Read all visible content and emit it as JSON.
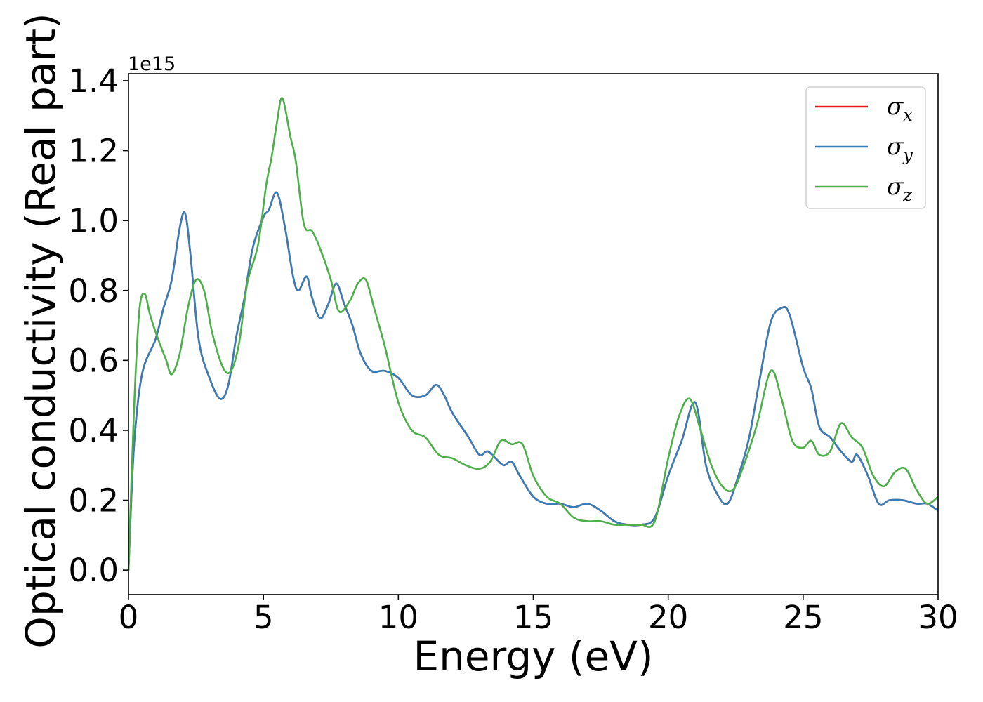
{
  "chart_data": {
    "type": "line",
    "xlabel": "Energy (eV)",
    "ylabel": "Optical conductivity (Real part)",
    "y_offset_label": "1e15",
    "xlim": [
      0,
      30
    ],
    "ylim": [
      -0.07,
      1.42
    ],
    "x_ticks": [
      0,
      5,
      10,
      15,
      20,
      25,
      30
    ],
    "x_tick_labels": [
      "0",
      "5",
      "10",
      "15",
      "20",
      "25",
      "30"
    ],
    "y_ticks": [
      0.0,
      0.2,
      0.4,
      0.6,
      0.8,
      1.0,
      1.2,
      1.4
    ],
    "y_tick_labels": [
      "0.0",
      "0.2",
      "0.4",
      "0.6",
      "0.8",
      "1.0",
      "1.2",
      "1.4"
    ],
    "grid": false,
    "legend_position": "top-right",
    "legend": [
      {
        "name": "σx",
        "base": "σ",
        "sub": "x",
        "color": "#e41a1c"
      },
      {
        "name": "σy",
        "base": "σ",
        "sub": "y",
        "color": "#377eb8"
      },
      {
        "name": "σz",
        "base": "σ",
        "sub": "z",
        "color": "#4daf4a"
      }
    ],
    "series": [
      {
        "name": "σx",
        "color": "#e41a1c",
        "x": [
          0,
          0.2,
          0.5,
          1.0,
          1.3,
          1.6,
          1.9,
          2.1,
          2.3,
          2.6,
          3.0,
          3.4,
          3.7,
          4.0,
          4.3,
          4.6,
          5.0,
          5.2,
          5.5,
          5.8,
          6.1,
          6.3,
          6.6,
          6.8,
          7.1,
          7.4,
          7.7,
          8.0,
          8.3,
          8.6,
          9.0,
          9.5,
          10.0,
          10.5,
          11.0,
          11.4,
          11.7,
          12.0,
          12.6,
          13.0,
          13.3,
          13.6,
          13.9,
          14.2,
          14.5,
          15.0,
          15.5,
          16.0,
          16.5,
          17.0,
          17.5,
          18.0,
          18.5,
          19.0,
          19.5,
          20.0,
          20.5,
          21.0,
          21.4,
          21.8,
          22.2,
          22.6,
          23.0,
          23.4,
          23.8,
          24.2,
          24.5,
          25.0,
          25.3,
          25.6,
          26.0,
          26.4,
          26.8,
          27.0,
          27.4,
          27.8,
          28.2,
          28.7,
          29.2,
          29.6,
          30.0
        ],
        "y": [
          0.0,
          0.35,
          0.56,
          0.66,
          0.75,
          0.83,
          0.98,
          1.02,
          0.9,
          0.66,
          0.55,
          0.49,
          0.53,
          0.67,
          0.78,
          0.92,
          1.01,
          1.03,
          1.08,
          0.98,
          0.84,
          0.8,
          0.84,
          0.78,
          0.72,
          0.76,
          0.82,
          0.76,
          0.7,
          0.62,
          0.57,
          0.57,
          0.55,
          0.5,
          0.5,
          0.53,
          0.5,
          0.45,
          0.38,
          0.33,
          0.34,
          0.32,
          0.3,
          0.31,
          0.27,
          0.21,
          0.19,
          0.19,
          0.18,
          0.19,
          0.17,
          0.14,
          0.13,
          0.13,
          0.15,
          0.27,
          0.37,
          0.48,
          0.3,
          0.22,
          0.19,
          0.27,
          0.38,
          0.55,
          0.71,
          0.75,
          0.73,
          0.58,
          0.52,
          0.41,
          0.38,
          0.34,
          0.31,
          0.33,
          0.27,
          0.19,
          0.2,
          0.2,
          0.19,
          0.19,
          0.17
        ]
      },
      {
        "name": "σy",
        "color": "#377eb8",
        "x": [
          0,
          0.2,
          0.5,
          1.0,
          1.3,
          1.6,
          1.9,
          2.1,
          2.3,
          2.6,
          3.0,
          3.4,
          3.7,
          4.0,
          4.3,
          4.6,
          5.0,
          5.2,
          5.5,
          5.8,
          6.1,
          6.3,
          6.6,
          6.8,
          7.1,
          7.4,
          7.7,
          8.0,
          8.3,
          8.6,
          9.0,
          9.5,
          10.0,
          10.5,
          11.0,
          11.4,
          11.7,
          12.0,
          12.6,
          13.0,
          13.3,
          13.6,
          13.9,
          14.2,
          14.5,
          15.0,
          15.5,
          16.0,
          16.5,
          17.0,
          17.5,
          18.0,
          18.5,
          19.0,
          19.5,
          20.0,
          20.5,
          21.0,
          21.4,
          21.8,
          22.2,
          22.6,
          23.0,
          23.4,
          23.8,
          24.2,
          24.5,
          25.0,
          25.3,
          25.6,
          26.0,
          26.4,
          26.8,
          27.0,
          27.4,
          27.8,
          28.2,
          28.7,
          29.2,
          29.6,
          30.0
        ],
        "y": [
          0.0,
          0.35,
          0.56,
          0.66,
          0.75,
          0.83,
          0.98,
          1.02,
          0.9,
          0.66,
          0.55,
          0.49,
          0.53,
          0.67,
          0.78,
          0.92,
          1.01,
          1.03,
          1.08,
          0.98,
          0.84,
          0.8,
          0.84,
          0.78,
          0.72,
          0.76,
          0.82,
          0.76,
          0.7,
          0.62,
          0.57,
          0.57,
          0.55,
          0.5,
          0.5,
          0.53,
          0.5,
          0.45,
          0.38,
          0.33,
          0.34,
          0.32,
          0.3,
          0.31,
          0.27,
          0.21,
          0.19,
          0.19,
          0.18,
          0.19,
          0.17,
          0.14,
          0.13,
          0.13,
          0.15,
          0.27,
          0.37,
          0.48,
          0.3,
          0.22,
          0.19,
          0.27,
          0.38,
          0.55,
          0.71,
          0.75,
          0.73,
          0.58,
          0.52,
          0.41,
          0.38,
          0.34,
          0.31,
          0.33,
          0.27,
          0.19,
          0.2,
          0.2,
          0.19,
          0.19,
          0.17
        ]
      },
      {
        "name": "σz",
        "color": "#4daf4a",
        "x": [
          0,
          0.2,
          0.4,
          0.6,
          0.8,
          1.1,
          1.4,
          1.6,
          1.9,
          2.2,
          2.5,
          2.8,
          3.1,
          3.5,
          3.8,
          4.1,
          4.4,
          4.8,
          5.1,
          5.3,
          5.5,
          5.7,
          6.0,
          6.2,
          6.5,
          6.8,
          7.1,
          7.5,
          7.8,
          8.2,
          8.5,
          8.8,
          9.1,
          9.5,
          10.0,
          10.5,
          11.0,
          11.5,
          12.0,
          12.5,
          13.0,
          13.4,
          13.8,
          14.2,
          14.6,
          15.0,
          15.5,
          16.0,
          16.5,
          17.0,
          17.5,
          18.0,
          18.5,
          19.0,
          19.5,
          20.0,
          20.4,
          20.8,
          21.2,
          21.6,
          22.0,
          22.4,
          22.8,
          23.3,
          23.8,
          24.2,
          24.6,
          25.0,
          25.3,
          25.6,
          26.0,
          26.4,
          26.8,
          27.2,
          27.6,
          28.0,
          28.4,
          28.8,
          29.2,
          29.6,
          30.0
        ],
        "y": [
          0.0,
          0.45,
          0.74,
          0.79,
          0.73,
          0.66,
          0.6,
          0.56,
          0.62,
          0.75,
          0.83,
          0.8,
          0.68,
          0.58,
          0.57,
          0.65,
          0.82,
          0.93,
          1.1,
          1.18,
          1.28,
          1.35,
          1.24,
          1.17,
          0.99,
          0.97,
          0.92,
          0.83,
          0.74,
          0.77,
          0.82,
          0.83,
          0.75,
          0.64,
          0.48,
          0.4,
          0.38,
          0.33,
          0.32,
          0.3,
          0.29,
          0.31,
          0.37,
          0.36,
          0.36,
          0.27,
          0.21,
          0.19,
          0.15,
          0.14,
          0.14,
          0.13,
          0.13,
          0.13,
          0.14,
          0.32,
          0.44,
          0.49,
          0.4,
          0.3,
          0.24,
          0.23,
          0.3,
          0.42,
          0.57,
          0.49,
          0.37,
          0.35,
          0.37,
          0.33,
          0.34,
          0.42,
          0.38,
          0.35,
          0.27,
          0.24,
          0.28,
          0.29,
          0.23,
          0.19,
          0.21
        ]
      }
    ]
  }
}
